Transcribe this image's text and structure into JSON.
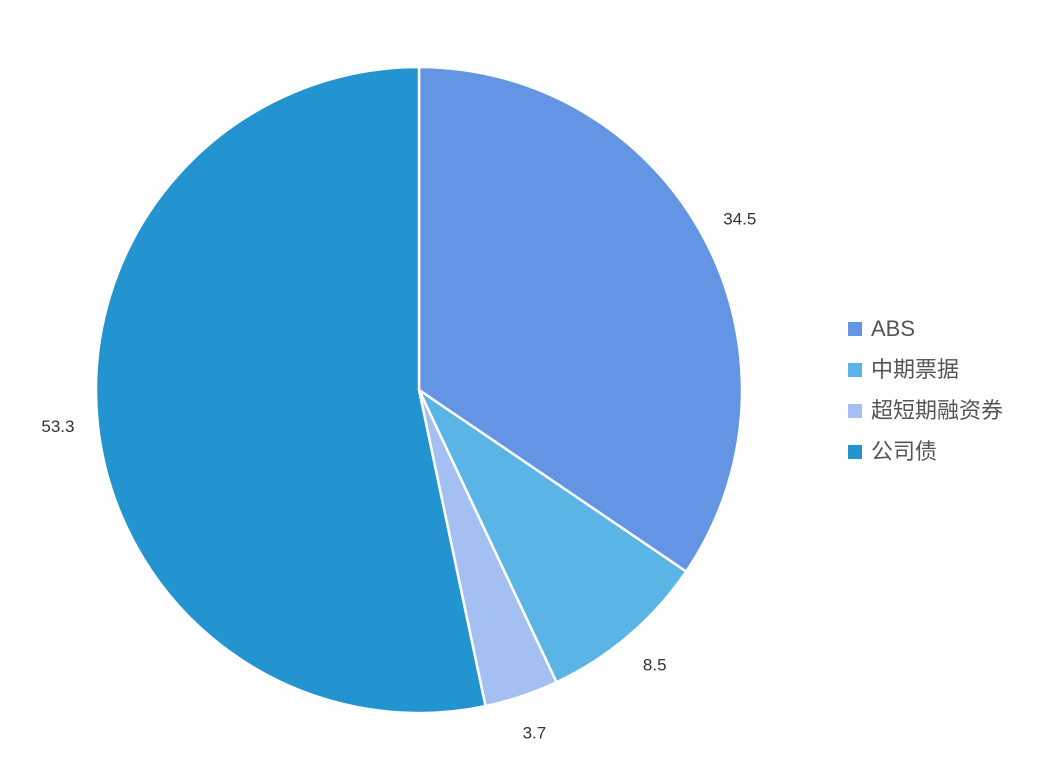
{
  "chart_data": {
    "type": "pie",
    "categories": [
      "ABS",
      "中期票据",
      "超短期融资券",
      "公司债"
    ],
    "values": [
      34.5,
      8.5,
      3.7,
      53.3
    ],
    "colors": [
      "#6495e4",
      "#5ab4e6",
      "#a4c0f2",
      "#2394d0"
    ],
    "legend": "right"
  }
}
